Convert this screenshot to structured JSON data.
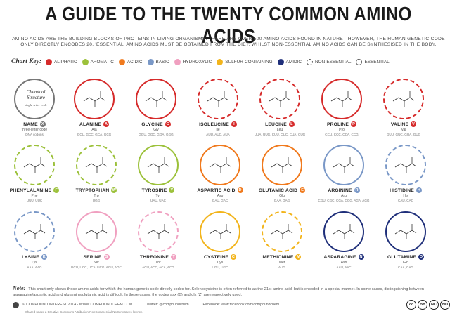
{
  "title": "A GUIDE TO THE TWENTY COMMON AMINO ACIDS",
  "intro_line1": "AMINO ACIDS ARE THE BUILDING BLOCKS OF PROTEINS IN LIVING ORGANISMS. THERE ARE OVER 500 AMINO ACIDS FOUND IN NATURE - HOWEVER, THE HUMAN GENETIC CODE",
  "intro_line2": "ONLY DIRECTLY ENCODES 20. 'ESSENTIAL' AMINO ACIDS MUST BE OBTAINED FROM THE DIET, WHILST NON-ESSENTIAL AMINO ACIDS CAN BE SYNTHESISED IN THE BODY.",
  "legend": {
    "title": "Chart Key:",
    "items": [
      {
        "label": "ALIPHATIC",
        "color": "#d62b2b"
      },
      {
        "label": "AROMATIC",
        "color": "#9cc13b"
      },
      {
        "label": "ACIDIC",
        "color": "#f07a1e"
      },
      {
        "label": "BASIC",
        "color": "#7a98c7"
      },
      {
        "label": "HYDROXYLIC",
        "color": "#f0a0c0"
      },
      {
        "label": "SULFUR-CONTAINING",
        "color": "#f2b41b"
      },
      {
        "label": "AMIDIC",
        "color": "#1f2f7a"
      }
    ],
    "non_essential": "NON-ESSENTIAL",
    "essential": "ESSENTIAL"
  },
  "key_cell": {
    "line1": "Chemical",
    "line2": "Structure",
    "small": "single-letter code",
    "name": "NAME",
    "badge": "X",
    "abbr": "three-letter code",
    "sub": "DNA codons"
  },
  "acids": [
    {
      "name": "ALANINE",
      "letter": "A",
      "abbr": "Ala",
      "sub": "GCU, GCC, GCA, GCG",
      "color": "#d62b2b"
    },
    {
      "name": "GLYCINE",
      "letter": "G",
      "abbr": "Gly",
      "sub": "GGU, GGC, GGA, GGG",
      "color": "#d62b2b"
    },
    {
      "name": "ISOLEUCINE",
      "letter": "I",
      "abbr": "Ile",
      "sub": "AUU, AUC, AUA",
      "color": "#d62b2b"
    },
    {
      "name": "LEUCINE",
      "letter": "L",
      "abbr": "Leu",
      "sub": "UUA, UUG, CUU, CUC, CUA, CUG",
      "color": "#d62b2b"
    },
    {
      "name": "PROLINE",
      "letter": "P",
      "abbr": "Pro",
      "sub": "CCU, CCC, CCA, CCG",
      "color": "#d62b2b"
    },
    {
      "name": "VALINE",
      "letter": "V",
      "abbr": "Val",
      "sub": "GUU, GUC, GUA, GUG",
      "color": "#d62b2b"
    },
    {
      "name": "PHENYLALANINE",
      "letter": "F",
      "abbr": "Phe",
      "sub": "UUU, UUC",
      "color": "#9cc13b"
    },
    {
      "name": "TRYPTOPHAN",
      "letter": "W",
      "abbr": "Trp",
      "sub": "UGG",
      "color": "#9cc13b"
    },
    {
      "name": "TYROSINE",
      "letter": "Y",
      "abbr": "Tyr",
      "sub": "UAU, UAC",
      "color": "#9cc13b"
    },
    {
      "name": "ASPARTIC ACID",
      "letter": "D",
      "abbr": "Asp",
      "sub": "GAU, GAC",
      "color": "#f07a1e"
    },
    {
      "name": "GLUTAMIC ACID",
      "letter": "E",
      "abbr": "Glu",
      "sub": "GAA, GAG",
      "color": "#f07a1e"
    },
    {
      "name": "ARGININE",
      "letter": "R",
      "abbr": "Arg",
      "sub": "CGU, CGC, CGA, CGG, AGA, AGG",
      "color": "#7a98c7"
    },
    {
      "name": "HISTIDINE",
      "letter": "H",
      "abbr": "His",
      "sub": "CAU, CAC",
      "color": "#7a98c7"
    },
    {
      "name": "LYSINE",
      "letter": "K",
      "abbr": "Lys",
      "sub": "AAA, AAG",
      "color": "#7a98c7"
    },
    {
      "name": "SERINE",
      "letter": "S",
      "abbr": "Ser",
      "sub": "UCU, UCC, UCA, UCG, AGU, AGC",
      "color": "#f0a0c0"
    },
    {
      "name": "THREONINE",
      "letter": "T",
      "abbr": "Thr",
      "sub": "ACU, ACC, ACA, ACG",
      "color": "#f0a0c0"
    },
    {
      "name": "CYSTEINE",
      "letter": "C",
      "abbr": "Cys",
      "sub": "UGU, UGC",
      "color": "#f2b41b"
    },
    {
      "name": "METHIONINE",
      "letter": "M",
      "abbr": "Met",
      "sub": "AUG",
      "color": "#f2b41b"
    },
    {
      "name": "ASPARAGINE",
      "letter": "N",
      "abbr": "Asn",
      "sub": "AAU, AAC",
      "color": "#1f2f7a"
    },
    {
      "name": "GLUTAMINE",
      "letter": "Q",
      "abbr": "Gln",
      "sub": "CAA, CAG",
      "color": "#1f2f7a"
    }
  ],
  "note_label": "Note:",
  "note_text": "This chart only shows those amino acids for which the human genetic code directly codes for. Selenocysteine is often referred to as the 21st amino acid, but is encoded in a special manner. In some cases, distinguishing between asparagine/aspartic acid and glutamine/glutamic acid is difficult. In these cases, the codes asx (B) and glx (Z) are respectively used.",
  "footer_copyright": "© COMPOUND INTEREST 2014 - WWW.COMPOUNDCHEM.COM",
  "footer_twitter": "Twitter: @compoundchem",
  "footer_facebook": "Facebook: www.facebook.com/compoundchem",
  "footer_license": "Shared under a Creative Commons Attribution-NonCommercial-NoDerivatives licence.",
  "cc_labels": [
    "cc",
    "BY",
    "NC",
    "ND"
  ]
}
